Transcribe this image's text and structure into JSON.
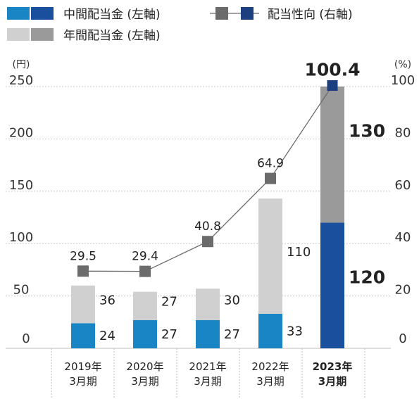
{
  "legend": {
    "interim": {
      "label": "中間配当金 (左軸)",
      "colors": [
        "#1a85c4",
        "#1a4f9e"
      ]
    },
    "annual": {
      "label": "年間配当金 (左軸)",
      "colors": [
        "#d0d0d0",
        "#9a9a9a"
      ]
    },
    "payout": {
      "label": "配当性向 (右軸)",
      "colors": [
        "#6b6b6b",
        "#1b3f7f"
      ]
    }
  },
  "chart_data": {
    "type": "bar",
    "left_axis": {
      "unit": "(円)",
      "ylim": [
        0,
        250
      ],
      "ticks": [
        "0",
        "50",
        "100",
        "150",
        "200",
        "250"
      ]
    },
    "right_axis": {
      "unit": "(%)",
      "ylim": [
        0,
        100
      ],
      "ticks": [
        "0",
        "20",
        "40",
        "60",
        "80",
        "100"
      ]
    },
    "grid": true,
    "categories": [
      {
        "line1": "2019年",
        "line2": "3月期",
        "highlight": false
      },
      {
        "line1": "2020年",
        "line2": "3月期",
        "highlight": false
      },
      {
        "line1": "2021年",
        "line2": "3月期",
        "highlight": false
      },
      {
        "line1": "2022年",
        "line2": "3月期",
        "highlight": false
      },
      {
        "line1": "2023年",
        "line2": "3月期",
        "highlight": true
      }
    ],
    "series": [
      {
        "name": "中間配当金",
        "axis": "left",
        "stack": "bar",
        "values": [
          24,
          27,
          27,
          33,
          120
        ],
        "labels": [
          "24",
          "27",
          "27",
          "33",
          "120"
        ]
      },
      {
        "name": "年間配当金",
        "axis": "left",
        "stack": "bar",
        "values": [
          36,
          27,
          30,
          110,
          130
        ],
        "labels": [
          "36",
          "27",
          "30",
          "110",
          "130"
        ]
      },
      {
        "name": "配当性向",
        "axis": "right",
        "type": "line",
        "values": [
          29.5,
          29.4,
          40.8,
          64.9,
          100.4
        ],
        "labels": [
          "29.5",
          "29.4",
          "40.8",
          "64.9",
          "100.4"
        ]
      }
    ]
  }
}
